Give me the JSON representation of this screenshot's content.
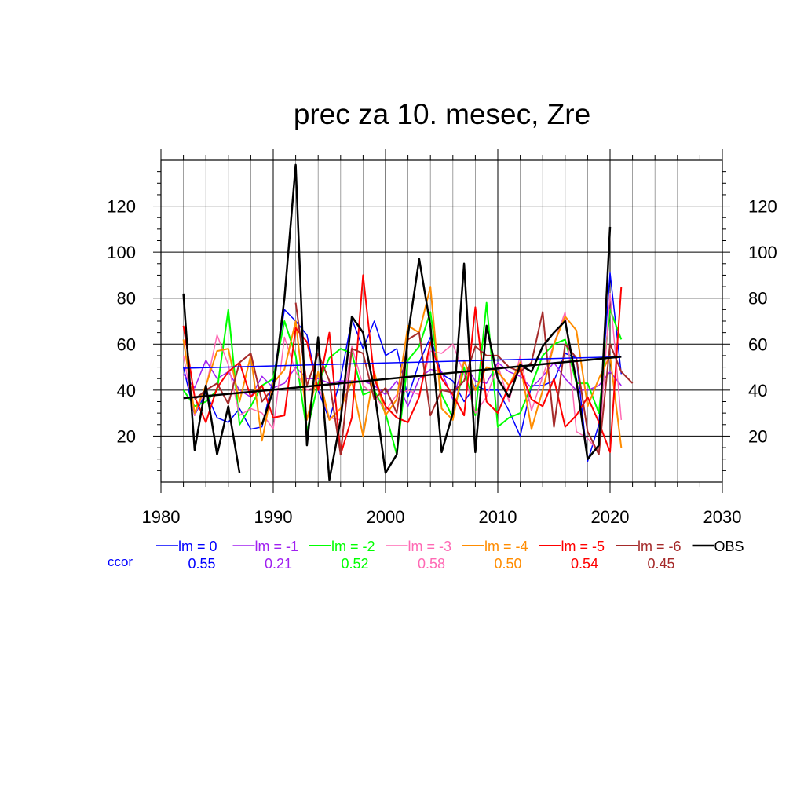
{
  "chart_data": {
    "type": "line",
    "title": "prec za 10. mesec, Zre",
    "xlabel": "",
    "ylabel": "",
    "xlim": [
      1980,
      2030
    ],
    "ylim": [
      0,
      140
    ],
    "x_ticks": [
      1980,
      1990,
      2000,
      2010,
      2020,
      2030
    ],
    "y_ticks": [
      20,
      40,
      60,
      80,
      100,
      120
    ],
    "grid": true,
    "legend_position": "bottom",
    "ccor_label": "ccor",
    "x": [
      1982,
      1983,
      1984,
      1985,
      1986,
      1987,
      1988,
      1989,
      1990,
      1991,
      1992,
      1993,
      1994,
      1995,
      1996,
      1997,
      1998,
      1999,
      2000,
      2001,
      2002,
      2003,
      2004,
      2005,
      2006,
      2007,
      2008,
      2009,
      2010,
      2011,
      2012,
      2013,
      2014,
      2015,
      2016,
      2017,
      2018,
      2019,
      2020,
      2021,
      2022
    ],
    "series": [
      {
        "name": "lm = 0",
        "color": "#0000ff",
        "width": 1.5,
        "ccor": "0.55",
        "values": [
          50,
          29,
          39,
          28,
          26,
          32,
          23,
          24,
          45,
          75,
          70,
          64,
          40,
          27,
          45,
          71,
          58,
          70,
          55,
          58,
          37,
          52,
          63,
          47,
          44,
          35,
          42,
          40,
          40,
          31,
          20,
          42,
          42,
          44,
          56,
          54,
          9,
          25,
          91,
          47,
          null
        ]
      },
      {
        "name": "lm = -1",
        "color": "#a020f0",
        "width": 1.5,
        "ccor": "0.21",
        "values": [
          47,
          41,
          53,
          45,
          48,
          40,
          37,
          46,
          41,
          43,
          50,
          45,
          45,
          43,
          44,
          44,
          44,
          42,
          38,
          44,
          33,
          45,
          49,
          48,
          36,
          52,
          44,
          43,
          52,
          48,
          46,
          41,
          46,
          52,
          45,
          40,
          40,
          42,
          48,
          42,
          null
        ]
      },
      {
        "name": "lm = -2",
        "color": "#00ff00",
        "width": 2,
        "ccor": "0.52",
        "values": [
          40,
          33,
          35,
          40,
          75,
          25,
          33,
          42,
          45,
          70,
          55,
          22,
          43,
          54,
          58,
          56,
          38,
          40,
          30,
          12,
          53,
          59,
          74,
          38,
          28,
          50,
          29,
          78,
          24,
          28,
          30,
          42,
          55,
          60,
          62,
          43,
          43,
          30,
          75,
          62,
          null
        ]
      },
      {
        "name": "lm = -3",
        "color": "#ff69b4",
        "width": 1.5,
        "ccor": "0.58",
        "values": [
          55,
          29,
          41,
          64,
          51,
          29,
          32,
          30,
          23,
          63,
          48,
          40,
          42,
          28,
          27,
          59,
          42,
          38,
          31,
          38,
          40,
          38,
          57,
          56,
          60,
          47,
          30,
          37,
          51,
          35,
          55,
          31,
          46,
          60,
          74,
          22,
          19,
          13,
          82,
          27,
          null
        ]
      },
      {
        "name": "lm = -4",
        "color": "#ff8c00",
        "width": 2,
        "ccor": "0.50",
        "values": [
          62,
          30,
          42,
          57,
          58,
          35,
          55,
          18,
          43,
          49,
          70,
          27,
          48,
          27,
          32,
          44,
          20,
          48,
          29,
          36,
          68,
          65,
          85,
          32,
          27,
          53,
          40,
          50,
          48,
          42,
          52,
          23,
          40,
          60,
          72,
          66,
          33,
          45,
          55,
          15,
          null
        ]
      },
      {
        "name": "lm = -5",
        "color": "#ff0000",
        "width": 2,
        "ccor": "0.54",
        "values": [
          68,
          37,
          26,
          41,
          48,
          52,
          37,
          42,
          28,
          29,
          67,
          61,
          40,
          65,
          12,
          28,
          90,
          45,
          33,
          28,
          26,
          37,
          61,
          45,
          38,
          29,
          76,
          35,
          30,
          42,
          49,
          36,
          33,
          45,
          24,
          29,
          37,
          26,
          13,
          85,
          null
        ]
      },
      {
        "name": "lm = -6",
        "color": "#a52a2a",
        "width": 2,
        "ccor": "0.45",
        "values": [
          null,
          null,
          null,
          null,
          null,
          null,
          null,
          null,
          null,
          null,
          null,
          null,
          null,
          null,
          null,
          null,
          null,
          null,
          null,
          null,
          null,
          null,
          null,
          null,
          null,
          null,
          null,
          null,
          null,
          null,
          null,
          null,
          null,
          null,
          null,
          null,
          null,
          null,
          null,
          null,
          null
        ]
      },
      {
        "name": "OBS",
        "color": "#000000",
        "width": 2.5,
        "ccor": "",
        "values": [
          82,
          14,
          42,
          12,
          33,
          4,
          null,
          25,
          40,
          80,
          138,
          16,
          63,
          1,
          27,
          72,
          65,
          40,
          4,
          12,
          64,
          97,
          68,
          13,
          30,
          95,
          13,
          68,
          45,
          37,
          51,
          48,
          59,
          65,
          70,
          44,
          10,
          16,
          111,
          null,
          null
        ]
      }
    ],
    "brown_series_values": [
      null,
      36,
      40,
      43,
      34,
      52,
      56,
      35,
      41,
      null,
      78,
      42,
      56,
      44,
      12,
      58,
      56,
      36,
      41,
      30,
      62,
      65,
      29,
      40,
      39,
      44,
      59,
      55,
      55,
      50,
      48,
      52,
      74,
      24,
      60,
      54,
      22,
      12,
      60,
      48,
      43
    ],
    "trend_lines": [
      {
        "series": "lm = 0",
        "color": "#0000ff",
        "width": 1.5,
        "x": [
          1982,
          2021
        ],
        "y": [
          49.5,
          54.5
        ]
      },
      {
        "series": "OBS",
        "color": "#000000",
        "width": 2.5,
        "x": [
          1982,
          2021
        ],
        "y": [
          36.5,
          54.5
        ]
      }
    ]
  }
}
